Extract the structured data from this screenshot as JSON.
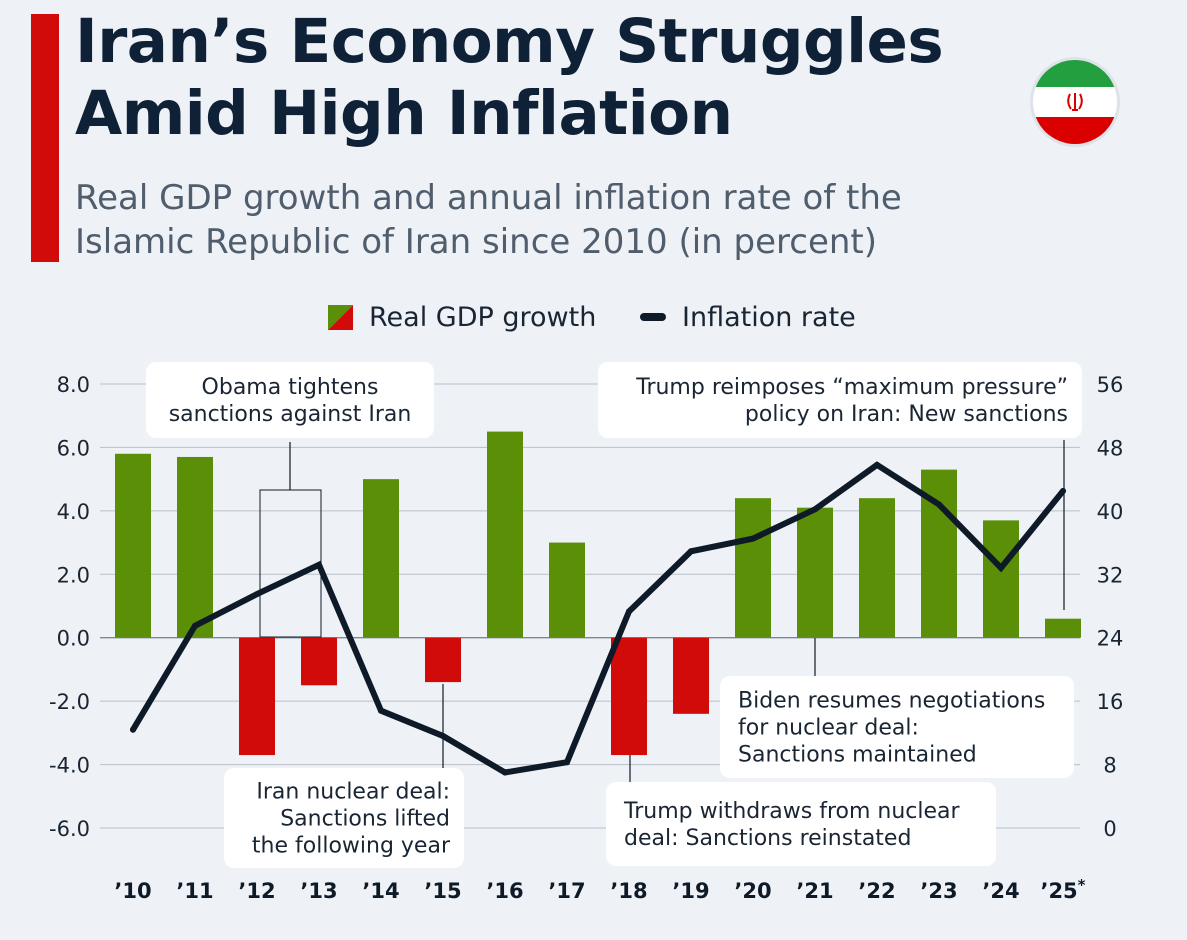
{
  "header": {
    "title_line1": "Iran’s Economy Struggles",
    "title_line2": "Amid High Inflation",
    "subtitle_line1": "Real GDP growth and annual inflation rate of the",
    "subtitle_line2": "Islamic Republic of Iran since 2010 (in percent)"
  },
  "colors": {
    "positive": "#5b8f07",
    "negative": "#d10a0a",
    "line": "#0f1a28",
    "accent": "#d10a0a",
    "grid": "#b8c0c9"
  },
  "chart_data": {
    "type": "bar",
    "categories": [
      "'10",
      "'11",
      "'12",
      "'13",
      "'14",
      "'15",
      "'16",
      "'17",
      "'18",
      "'19",
      "'20",
      "'21",
      "'22",
      "'23",
      "'24",
      "'25*"
    ],
    "series": [
      {
        "name": "Real GDP growth",
        "type": "bar",
        "axis": "left",
        "values": [
          5.8,
          5.7,
          -3.7,
          -1.5,
          5.0,
          -1.4,
          6.5,
          3.0,
          -3.7,
          -2.4,
          4.4,
          4.1,
          4.4,
          5.3,
          3.7,
          0.6
        ]
      },
      {
        "name": "Inflation rate",
        "type": "line",
        "axis": "right",
        "values": [
          12.4,
          25.5,
          29.5,
          33.2,
          14.8,
          11.6,
          7.0,
          8.3,
          27.3,
          34.9,
          36.5,
          40.2,
          45.8,
          40.8,
          32.8,
          42.5
        ]
      }
    ],
    "left_axis": {
      "min": -6,
      "max": 8,
      "ticks": [
        "8.0",
        "6.0",
        "4.0",
        "2.0",
        "0.0",
        "-2.0",
        "-4.0",
        "-6.0"
      ]
    },
    "right_axis": {
      "min": 0,
      "max": 56,
      "ticks": [
        "56",
        "48",
        "40",
        "32",
        "24",
        "16",
        "8",
        "0"
      ]
    },
    "legend": [
      "Real GDP growth",
      "Inflation rate"
    ],
    "annotations": [
      {
        "id": "obama",
        "year": "'13",
        "lines": [
          "Obama tightens",
          "sanctions against Iran"
        ]
      },
      {
        "id": "deal",
        "year": "'15",
        "lines": [
          "Iran nuclear deal:",
          "Sanctions lifted",
          "the following year"
        ]
      },
      {
        "id": "trump-withdraw",
        "year": "'18",
        "lines": [
          "Trump withdraws from nuclear",
          "deal: Sanctions reinstated"
        ]
      },
      {
        "id": "biden",
        "year": "'21",
        "lines": [
          "Biden resumes negotiations",
          "for nuclear deal:",
          "Sanctions maintained"
        ]
      },
      {
        "id": "trump-max",
        "year": "'25*",
        "lines": [
          "Trump reimposes “maximum pressure”",
          "policy on Iran: New sanctions"
        ]
      }
    ]
  }
}
